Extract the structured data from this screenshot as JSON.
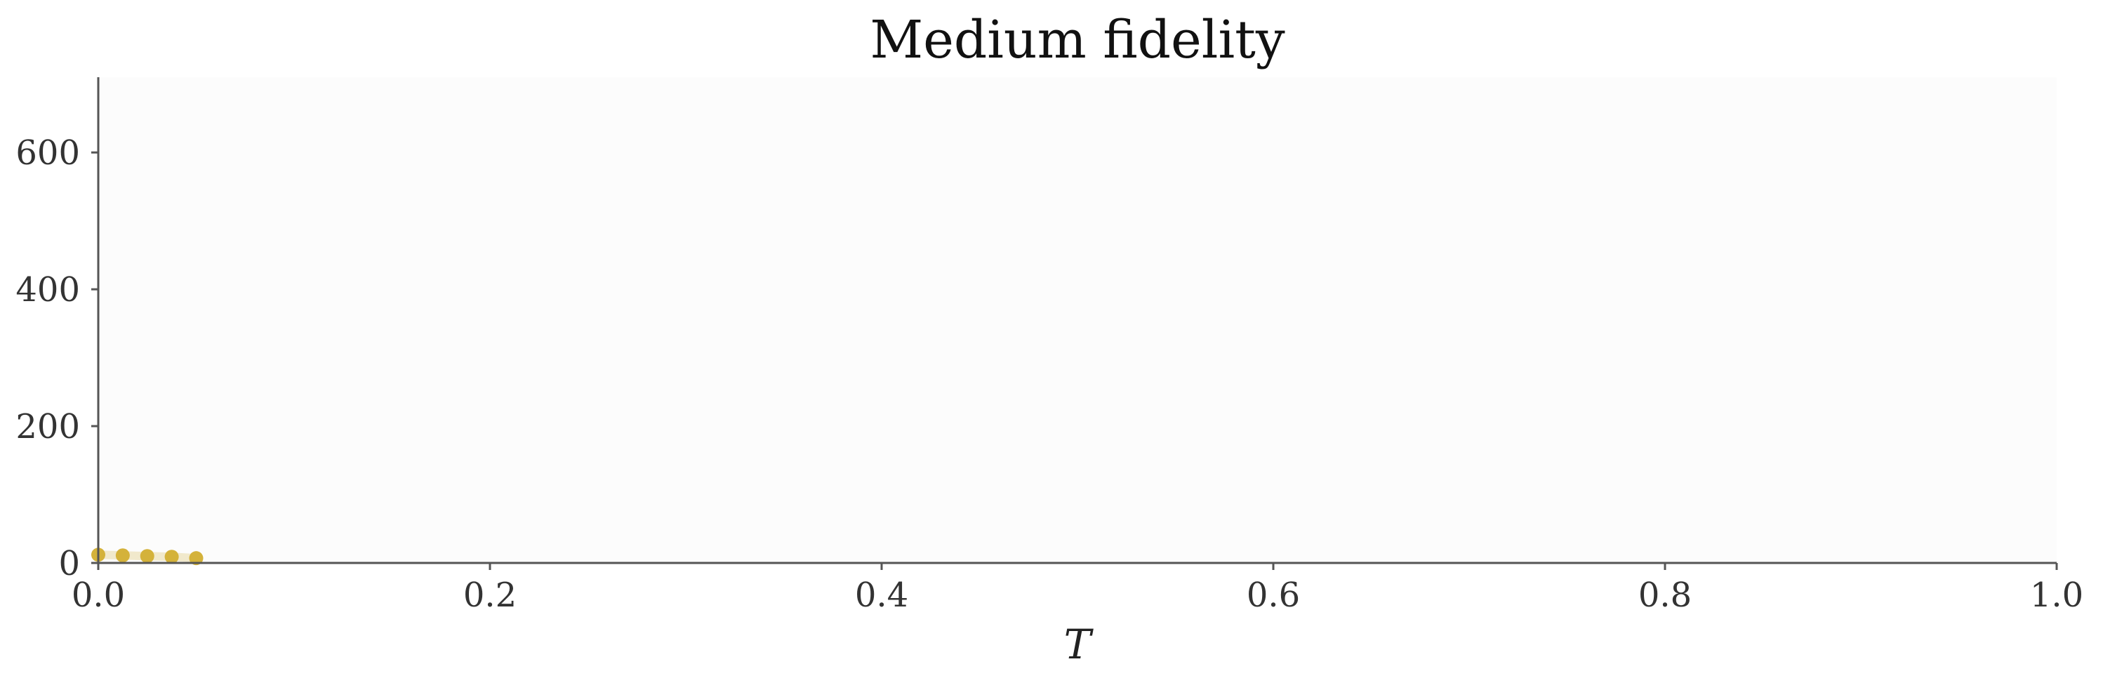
{
  "chart_data": {
    "type": "scatter",
    "title": "Medium fidelity",
    "xlabel": "T",
    "ylabel": "",
    "xlim": [
      0.0,
      1.0
    ],
    "ylim": [
      0,
      710
    ],
    "xticks": [
      0.0,
      0.2,
      0.4,
      0.6,
      0.8,
      1.0
    ],
    "xtick_labels": [
      "0.0",
      "0.2",
      "0.4",
      "0.6",
      "0.8",
      "1.0"
    ],
    "yticks": [
      0,
      200,
      400,
      600
    ],
    "ytick_labels": [
      "0",
      "200",
      "400",
      "600"
    ],
    "grid": false,
    "legend": "none",
    "series": [
      {
        "color": "#d4b23a",
        "x": [
          0.0,
          0.0125,
          0.025,
          0.0375,
          0.05
        ],
        "y": [
          12,
          11,
          10,
          9,
          7
        ]
      }
    ],
    "colors": {
      "plot_background": "#fcfcfc",
      "axis": "#555555",
      "band": "#ede3bf"
    }
  }
}
